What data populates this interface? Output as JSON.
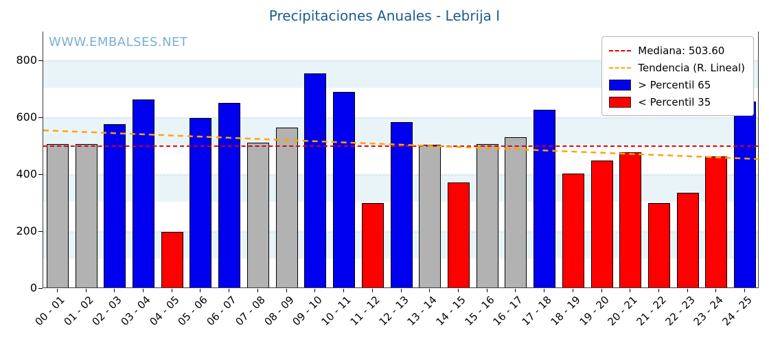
{
  "title": "Precipitaciones Anuales - Lebrija I",
  "watermark": "WWW.EMBALSES.NET",
  "legend": {
    "median_label": "Mediana: 503.60",
    "trend_label": "Tendencia (R. Lineal)",
    "above_label": "> Percentil 65",
    "below_label": "< Percentil 35"
  },
  "colors": {
    "above": "#0000f0",
    "below": "#ff0000",
    "mid": "#b2b2b2",
    "bar_edge": "#000000",
    "median_line": "#e00000",
    "trend_line": "#ffa500",
    "title": "#1b5c8e",
    "watermark": "#78b0d4",
    "stripe": "#e9f4f9"
  },
  "chart_data": {
    "type": "bar",
    "title": "Precipitaciones Anuales - Lebrija I",
    "categories": [
      "00 - 01",
      "01 - 02",
      "02 - 03",
      "03 - 04",
      "04 - 05",
      "05 - 06",
      "06 - 07",
      "07 - 08",
      "08 - 09",
      "09 - 10",
      "10 - 11",
      "11 - 12",
      "12 - 13",
      "13 - 14",
      "14 - 15",
      "15 - 16",
      "16 - 17",
      "17 - 18",
      "18 - 19",
      "19 - 20",
      "20 - 21",
      "21 - 22",
      "22 - 23",
      "23 - 24",
      "24 - 25"
    ],
    "values": [
      503,
      503,
      573,
      660,
      196,
      595,
      648,
      508,
      561,
      750,
      687,
      297,
      580,
      500,
      368,
      503,
      527,
      624,
      399,
      445,
      474,
      295,
      331,
      460,
      653
    ],
    "bar_classes": [
      "mid",
      "mid",
      "above",
      "above",
      "below",
      "above",
      "above",
      "mid",
      "mid",
      "above",
      "above",
      "below",
      "above",
      "mid",
      "below",
      "mid",
      "mid",
      "above",
      "below",
      "below",
      "below",
      "below",
      "below",
      "below",
      "above"
    ],
    "median": 503.6,
    "trend": {
      "start": 556,
      "end": 455
    },
    "ylim": [
      0,
      900
    ],
    "yticks": [
      0,
      200,
      400,
      600,
      800
    ],
    "legend_entries": [
      "Mediana: 503.60",
      "Tendencia (R. Lineal)",
      "> Percentil 65",
      "< Percentil 35"
    ],
    "xlabel": "",
    "ylabel": "",
    "grid": "horizontal-dashed",
    "legend_position": "upper-right"
  }
}
